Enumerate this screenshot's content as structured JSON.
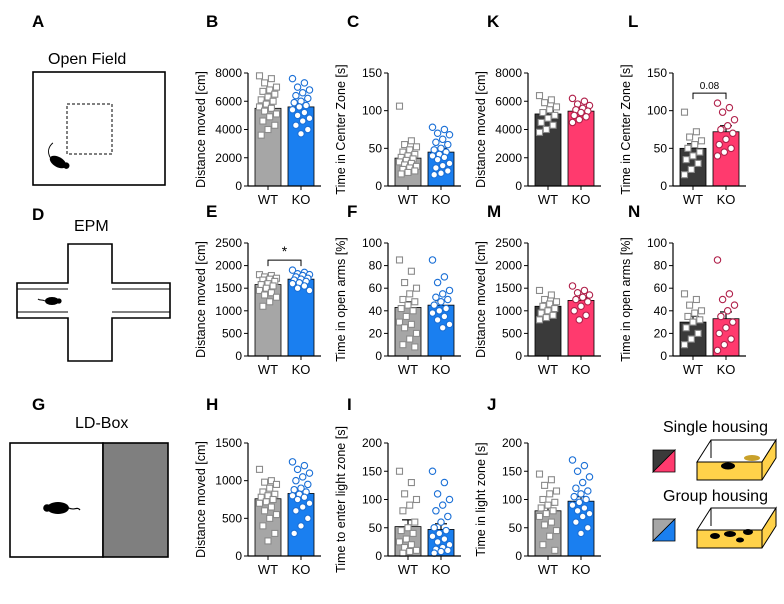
{
  "colors": {
    "wt_bar": "#a6a6a6",
    "wt_dark_bar": "#3a3a3a",
    "ko_blue": "#1a7ff0",
    "ko_pink": "#ff3a6e",
    "marker_wt": "#8a8a8a",
    "marker_ko_blue": "#1a6fd6",
    "marker_ko_pink": "#b0204a",
    "arena": "#ffffff",
    "dark_box": "#7f7f7f",
    "floor_yellow": "#ffd24a"
  },
  "schematics": {
    "A": {
      "letter": "A",
      "title": "Open Field"
    },
    "D": {
      "letter": "D",
      "title": "EPM"
    },
    "G": {
      "letter": "G",
      "title": "LD-Box"
    },
    "housing": {
      "single": "Single housing",
      "group": "Group housing"
    }
  },
  "chart_data": [
    {
      "id": "B",
      "letter": "B",
      "type": "bar",
      "ylabel": "Distance moved [cm]",
      "ylim": [
        0,
        8000
      ],
      "yticks": [
        0,
        2000,
        4000,
        6000,
        8000
      ],
      "categories": [
        "WT",
        "KO"
      ],
      "scheme": "blue",
      "series": [
        {
          "mean": 5500,
          "sem": 300,
          "points": [
            7800,
            7600,
            7300,
            7000,
            6800,
            6700,
            6500,
            6300,
            6100,
            6000,
            5800,
            5600,
            5500,
            5300,
            5100,
            4900,
            4600,
            4300,
            4000,
            3600
          ]
        },
        {
          "mean": 5600,
          "sem": 250,
          "points": [
            7600,
            7300,
            7000,
            6800,
            6600,
            6400,
            6200,
            6000,
            5900,
            5700,
            5600,
            5400,
            5200,
            5000,
            4800,
            4600,
            4300,
            4000,
            3700
          ]
        }
      ]
    },
    {
      "id": "C",
      "letter": "C",
      "type": "bar",
      "ylabel": "Time in Center Zone [s]",
      "ylim": [
        0,
        150
      ],
      "yticks": [
        0,
        50,
        100,
        150
      ],
      "categories": [
        "WT",
        "KO"
      ],
      "scheme": "blue",
      "series": [
        {
          "mean": 37,
          "sem": 4,
          "points": [
            106,
            60,
            55,
            52,
            48,
            45,
            42,
            40,
            38,
            36,
            34,
            32,
            30,
            28,
            26,
            24,
            22,
            20,
            18,
            16
          ]
        },
        {
          "mean": 45,
          "sem": 5,
          "points": [
            78,
            75,
            70,
            68,
            62,
            58,
            55,
            50,
            48,
            45,
            42,
            40,
            38,
            35,
            30,
            27,
            24,
            20,
            17,
            15
          ]
        }
      ]
    },
    {
      "id": "K",
      "letter": "K",
      "type": "bar",
      "ylabel": "Distance moved [cm]",
      "ylim": [
        0,
        8000
      ],
      "yticks": [
        0,
        2000,
        4000,
        6000,
        8000
      ],
      "categories": [
        "WT",
        "KO"
      ],
      "scheme": "pink",
      "series": [
        {
          "mean": 5100,
          "sem": 200,
          "points": [
            6400,
            6100,
            5900,
            5600,
            5400,
            5200,
            5000,
            4800,
            4500,
            4300,
            4000,
            3800
          ]
        },
        {
          "mean": 5300,
          "sem": 150,
          "points": [
            6200,
            6000,
            5800,
            5700,
            5500,
            5400,
            5300,
            5200,
            5000,
            4900,
            4700,
            4500
          ]
        }
      ]
    },
    {
      "id": "L",
      "letter": "L",
      "type": "bar",
      "ylabel": "Time in Center Zone [s]",
      "ylim": [
        0,
        150
      ],
      "yticks": [
        0,
        50,
        100,
        150
      ],
      "categories": [
        "WT",
        "KO"
      ],
      "scheme": "pink",
      "sig": "0.08",
      "series": [
        {
          "mean": 50,
          "sem": 6,
          "points": [
            98,
            72,
            65,
            60,
            55,
            50,
            45,
            40,
            35,
            30,
            22,
            15
          ]
        },
        {
          "mean": 72,
          "sem": 8,
          "points": [
            110,
            104,
            98,
            88,
            80,
            75,
            70,
            62,
            55,
            50,
            45,
            40
          ]
        }
      ]
    },
    {
      "id": "E",
      "letter": "E",
      "type": "bar",
      "ylabel": "Distance moved [cm]",
      "ylim": [
        0,
        2500
      ],
      "yticks": [
        0,
        500,
        1000,
        1500,
        2000,
        2500
      ],
      "categories": [
        "WT",
        "KO"
      ],
      "scheme": "blue",
      "sig": "*",
      "series": [
        {
          "mean": 1580,
          "sem": 50,
          "points": [
            1800,
            1780,
            1750,
            1720,
            1700,
            1680,
            1650,
            1600,
            1580,
            1550,
            1500,
            1450,
            1400,
            1350,
            1300,
            1200,
            1100
          ]
        },
        {
          "mean": 1700,
          "sem": 30,
          "points": [
            1900,
            1850,
            1820,
            1800,
            1780,
            1750,
            1720,
            1700,
            1680,
            1650,
            1620,
            1600,
            1550,
            1500,
            1450
          ]
        }
      ]
    },
    {
      "id": "F",
      "letter": "F",
      "type": "bar",
      "ylabel": "Time in open arms [%]",
      "ylim": [
        0,
        100
      ],
      "yticks": [
        0,
        20,
        40,
        60,
        80,
        100
      ],
      "categories": [
        "WT",
        "KO"
      ],
      "scheme": "blue",
      "series": [
        {
          "mean": 43,
          "sem": 5,
          "points": [
            85,
            75,
            65,
            60,
            55,
            50,
            48,
            45,
            42,
            40,
            35,
            30,
            28,
            25,
            20,
            15,
            10,
            8
          ]
        },
        {
          "mean": 45,
          "sem": 4,
          "points": [
            85,
            70,
            65,
            58,
            55,
            52,
            50,
            48,
            45,
            42,
            40,
            38,
            35,
            32,
            28,
            25
          ]
        }
      ]
    },
    {
      "id": "M",
      "letter": "M",
      "type": "bar",
      "ylabel": "Distance moved [cm]",
      "ylim": [
        0,
        2500
      ],
      "yticks": [
        0,
        500,
        1000,
        1500,
        2000,
        2500
      ],
      "categories": [
        "WT",
        "KO"
      ],
      "scheme": "pink",
      "series": [
        {
          "mean": 1100,
          "sem": 60,
          "points": [
            1450,
            1350,
            1250,
            1200,
            1150,
            1100,
            1050,
            1000,
            950,
            900,
            850,
            800
          ]
        },
        {
          "mean": 1230,
          "sem": 60,
          "points": [
            1550,
            1450,
            1400,
            1350,
            1300,
            1250,
            1200,
            1100,
            1000,
            900,
            800
          ]
        }
      ]
    },
    {
      "id": "N",
      "letter": "N",
      "type": "bar",
      "ylabel": "Time in open arms [%]",
      "ylim": [
        0,
        100
      ],
      "yticks": [
        0,
        20,
        40,
        60,
        80,
        100
      ],
      "categories": [
        "WT",
        "KO"
      ],
      "scheme": "pink",
      "series": [
        {
          "mean": 30,
          "sem": 5,
          "points": [
            55,
            50,
            45,
            40,
            38,
            35,
            32,
            30,
            25,
            20,
            15,
            10
          ]
        },
        {
          "mean": 33,
          "sem": 6,
          "points": [
            85,
            55,
            50,
            45,
            40,
            35,
            30,
            25,
            20,
            15,
            10,
            5
          ]
        }
      ]
    },
    {
      "id": "H",
      "letter": "H",
      "type": "bar",
      "ylabel": "Distance moved [cm]",
      "ylim": [
        0,
        1500
      ],
      "yticks": [
        0,
        500,
        1000,
        1500
      ],
      "categories": [
        "WT",
        "KO"
      ],
      "scheme": "blue",
      "series": [
        {
          "mean": 760,
          "sem": 60,
          "points": [
            1150,
            1000,
            980,
            950,
            900,
            850,
            820,
            800,
            780,
            750,
            720,
            700,
            650,
            600,
            550,
            500,
            400,
            300,
            200
          ]
        },
        {
          "mean": 830,
          "sem": 50,
          "points": [
            1250,
            1200,
            1150,
            1100,
            1050,
            1000,
            950,
            900,
            880,
            850,
            820,
            800,
            780,
            750,
            700,
            650,
            600,
            500,
            400,
            300
          ]
        }
      ]
    },
    {
      "id": "I",
      "letter": "I",
      "type": "bar",
      "ylabel": "Time to enter light zone [s]",
      "ylim": [
        0,
        200
      ],
      "yticks": [
        0,
        50,
        100,
        150,
        200
      ],
      "categories": [
        "WT",
        "KO"
      ],
      "scheme": "blue",
      "series": [
        {
          "mean": 52,
          "sem": 12,
          "points": [
            150,
            130,
            110,
            100,
            90,
            80,
            60,
            50,
            45,
            40,
            30,
            25,
            20,
            15,
            10,
            8,
            5
          ]
        },
        {
          "mean": 47,
          "sem": 10,
          "points": [
            150,
            130,
            110,
            100,
            90,
            80,
            70,
            60,
            50,
            45,
            40,
            35,
            30,
            25,
            20,
            15,
            12,
            10,
            8,
            5
          ]
        }
      ]
    },
    {
      "id": "J",
      "letter": "J",
      "type": "bar",
      "ylabel": "Time in light zone [s]",
      "ylim": [
        0,
        200
      ],
      "yticks": [
        0,
        50,
        100,
        150,
        200
      ],
      "categories": [
        "WT",
        "KO"
      ],
      "scheme": "blue",
      "series": [
        {
          "mean": 80,
          "sem": 10,
          "points": [
            145,
            135,
            125,
            115,
            110,
            100,
            95,
            90,
            85,
            80,
            75,
            70,
            60,
            55,
            45,
            35,
            20,
            10
          ]
        },
        {
          "mean": 97,
          "sem": 8,
          "points": [
            170,
            160,
            150,
            140,
            130,
            120,
            115,
            110,
            105,
            100,
            95,
            90,
            85,
            80,
            75,
            70,
            60,
            50,
            40
          ]
        }
      ]
    }
  ]
}
